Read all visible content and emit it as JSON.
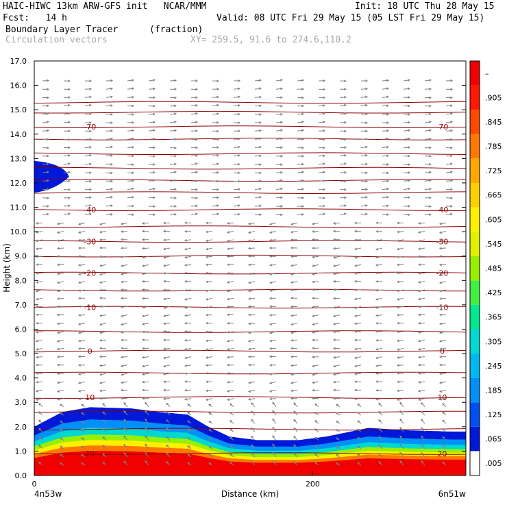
{
  "header": {
    "line1_left": "HAIC-HIWC 13km ARW-GFS init   NCAR/MMM",
    "line1_right": "Init: 18 UTC Thu 28 May 15",
    "line2_left": "Fcst:   14 h",
    "line2_right": "Valid: 08 UTC Fri 29 May 15 (05 LST Fri 29 May 15)",
    "line3_field": "Boundary Layer Tracer",
    "line3_units": "(fraction)",
    "line4_field": "Circulation vectors",
    "line4_xy": "XY= 259.5, 91.6 to 274.6,110.2"
  },
  "colors": {
    "contour": "#8b0000",
    "vector": "#808080",
    "scale": [
      "#ffffff",
      "#0018d8",
      "#0050f0",
      "#0090f8",
      "#00b8f0",
      "#00d8d0",
      "#00e890",
      "#40f040",
      "#98f000",
      "#e0f000",
      "#fff000",
      "#ffd000",
      "#ffa800",
      "#ff7800",
      "#ff4800",
      "#ff1800",
      "#f00000"
    ]
  },
  "chart_data": {
    "type": "cross-section",
    "title": "Boundary Layer Tracer",
    "xlabel": "Distance (km)",
    "ylabel": "Height (km)",
    "xlim": [
      0,
      310
    ],
    "ylim": [
      0,
      17
    ],
    "x_ticks": [
      {
        "value": 0,
        "label": "0"
      },
      {
        "value": 200,
        "label": "200"
      }
    ],
    "x_end_labels": {
      "left": "4n53w",
      "right": "6n51w"
    },
    "y_ticks": [
      "0.0",
      "1.0",
      "2.0",
      "3.0",
      "4.0",
      "5.0",
      "6.0",
      "7.0",
      "8.0",
      "9.0",
      "10.0",
      "11.0",
      "12.0",
      "13.0",
      "14.0",
      "15.0",
      "16.0",
      "17.0"
    ],
    "colorbar_labels": [
      ".005",
      ".065",
      ".125",
      ".185",
      ".245",
      ".305",
      ".365",
      ".425",
      ".485",
      ".545",
      ".605",
      ".665",
      ".725",
      ".785",
      ".845",
      ".905",
      "–"
    ],
    "temperature_contours": [
      {
        "label": "20",
        "height": 0.9
      },
      {
        "label": "10",
        "height": 3.2
      },
      {
        "label": "0",
        "height": 5.1
      },
      {
        "label": "-10",
        "height": 6.9
      },
      {
        "label": "-20",
        "height": 8.3
      },
      {
        "label": "-30",
        "height": 9.6
      },
      {
        "label": "-40",
        "height": 10.9
      },
      {
        "label": "-70",
        "height": 14.3
      },
      {
        "label": "",
        "height": 1.9
      },
      {
        "label": "",
        "height": 2.6
      },
      {
        "label": "",
        "height": 4.2
      },
      {
        "label": "",
        "height": 5.9
      },
      {
        "label": "",
        "height": 7.6
      },
      {
        "label": "",
        "height": 9.0
      },
      {
        "label": "",
        "height": 10.2
      },
      {
        "label": "",
        "height": 11.6
      },
      {
        "label": "",
        "height": 12.1
      },
      {
        "label": "",
        "height": 12.6
      },
      {
        "label": "",
        "height": 13.2
      },
      {
        "label": "",
        "height": 13.8
      },
      {
        "label": "",
        "height": 14.9
      },
      {
        "label": "",
        "height": 15.3
      }
    ],
    "tracer_top_height": [
      [
        0,
        2.0
      ],
      [
        20,
        2.6
      ],
      [
        40,
        2.8
      ],
      [
        70,
        2.75
      ],
      [
        90,
        2.6
      ],
      [
        110,
        2.5
      ],
      [
        125,
        2.0
      ],
      [
        140,
        1.6
      ],
      [
        160,
        1.45
      ],
      [
        190,
        1.45
      ],
      [
        210,
        1.6
      ],
      [
        240,
        1.95
      ],
      [
        270,
        1.85
      ],
      [
        300,
        1.8
      ],
      [
        310,
        1.8
      ]
    ],
    "upper_patch": {
      "x_range": [
        0,
        25
      ],
      "height_range": [
        11.6,
        12.9
      ]
    }
  }
}
